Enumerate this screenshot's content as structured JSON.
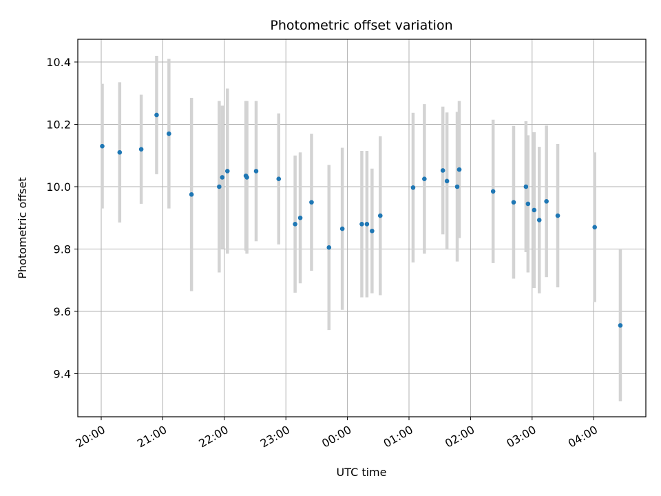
{
  "chart_data": {
    "type": "scatter",
    "title": "Photometric offset variation",
    "xlabel": "UTC time",
    "ylabel": "Photometric offset",
    "x_tick_labels": [
      "20:00",
      "21:00",
      "22:00",
      "23:00",
      "00:00",
      "01:00",
      "02:00",
      "03:00",
      "04:00"
    ],
    "y_tick_labels": [
      "9.4",
      "9.6",
      "9.8",
      "10.0",
      "10.2",
      "10.4"
    ],
    "grid": true,
    "colors": {
      "point": "#1f77b4",
      "errorbar": "#d3d3d3",
      "grid": "#b0b0b0"
    },
    "series": [
      {
        "points": [
          {
            "x": "20:01",
            "y": 10.13,
            "err": 0.2
          },
          {
            "x": "20:18",
            "y": 10.11,
            "err": 0.225
          },
          {
            "x": "20:39",
            "y": 10.12,
            "err": 0.175
          },
          {
            "x": "20:54",
            "y": 10.23,
            "err": 0.19
          },
          {
            "x": "21:06",
            "y": 10.17,
            "err": 0.24
          },
          {
            "x": "21:28",
            "y": 9.975,
            "err": 0.31
          },
          {
            "x": "21:55",
            "y": 10.0,
            "err": 0.275
          },
          {
            "x": "21:58",
            "y": 10.03,
            "err": 0.23
          },
          {
            "x": "22:03",
            "y": 10.05,
            "err": 0.265
          },
          {
            "x": "22:21",
            "y": 10.035,
            "err": 0.24
          },
          {
            "x": "22:22",
            "y": 10.03,
            "err": 0.245
          },
          {
            "x": "22:31",
            "y": 10.05,
            "err": 0.225
          },
          {
            "x": "22:53",
            "y": 10.025,
            "err": 0.21
          },
          {
            "x": "23:09",
            "y": 9.88,
            "err": 0.22
          },
          {
            "x": "23:14",
            "y": 9.9,
            "err": 0.21
          },
          {
            "x": "23:25",
            "y": 9.95,
            "err": 0.22
          },
          {
            "x": "23:42",
            "y": 9.805,
            "err": 0.265
          },
          {
            "x": "23:55",
            "y": 9.865,
            "err": 0.26
          },
          {
            "x": "00:14",
            "y": 9.88,
            "err": 0.235
          },
          {
            "x": "00:19",
            "y": 9.88,
            "err": 0.235
          },
          {
            "x": "00:24",
            "y": 9.858,
            "err": 0.2
          },
          {
            "x": "00:32",
            "y": 9.907,
            "err": 0.255
          },
          {
            "x": "01:04",
            "y": 9.997,
            "err": 0.24
          },
          {
            "x": "01:15",
            "y": 10.025,
            "err": 0.24
          },
          {
            "x": "01:33",
            "y": 10.052,
            "err": 0.205
          },
          {
            "x": "01:37",
            "y": 10.018,
            "err": 0.22
          },
          {
            "x": "01:47",
            "y": 10.0,
            "err": 0.24
          },
          {
            "x": "01:49",
            "y": 10.055,
            "err": 0.22
          },
          {
            "x": "02:22",
            "y": 9.985,
            "err": 0.23
          },
          {
            "x": "02:42",
            "y": 9.95,
            "err": 0.245
          },
          {
            "x": "02:54",
            "y": 10.0,
            "err": 0.21
          },
          {
            "x": "02:56",
            "y": 9.945,
            "err": 0.22
          },
          {
            "x": "03:02",
            "y": 9.925,
            "err": 0.25
          },
          {
            "x": "03:07",
            "y": 9.893,
            "err": 0.235
          },
          {
            "x": "03:14",
            "y": 9.953,
            "err": 0.243
          },
          {
            "x": "03:25",
            "y": 9.907,
            "err": 0.23
          },
          {
            "x": "04:01",
            "y": 9.87,
            "err": 0.24
          },
          {
            "x": "04:26",
            "y": 9.555,
            "err": 0.243
          }
        ]
      }
    ]
  }
}
